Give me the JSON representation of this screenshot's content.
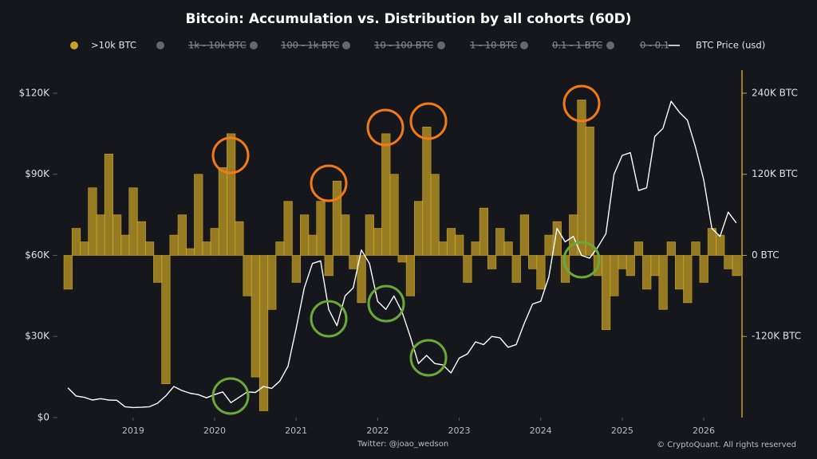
{
  "chart_data": {
    "type": "bar_line_dual",
    "title": "Bitcoin: Accumulation vs. Distribution by all cohorts (60D)",
    "footer_left": "Twitter: @joao_wedson",
    "footer_right": "© CryptoQuant. All rights reserved",
    "x": [
      2018.2,
      2018.3,
      2018.4,
      2018.5,
      2018.6,
      2018.7,
      2018.8,
      2018.9,
      2019.0,
      2019.1,
      2019.2,
      2019.3,
      2019.4,
      2019.5,
      2019.6,
      2019.7,
      2019.8,
      2019.9,
      2020.0,
      2020.1,
      2020.2,
      2020.3,
      2020.4,
      2020.5,
      2020.6,
      2020.7,
      2020.8,
      2020.9,
      2021.0,
      2021.1,
      2021.2,
      2021.3,
      2021.4,
      2021.5,
      2021.6,
      2021.7,
      2021.8,
      2021.9,
      2022.0,
      2022.1,
      2022.2,
      2022.3,
      2022.4,
      2022.5,
      2022.6,
      2022.7,
      2022.8,
      2022.9,
      2023.0,
      2023.1,
      2023.2,
      2023.3,
      2023.4,
      2023.5,
      2023.6,
      2023.7,
      2023.8,
      2023.9,
      2024.0,
      2024.1,
      2024.2,
      2024.3,
      2024.4,
      2024.5,
      2024.6,
      2024.7,
      2024.8,
      2024.9,
      2025.0,
      2025.1,
      2025.2,
      2025.3,
      2025.4,
      2025.5,
      2025.6,
      2025.7,
      2025.8,
      2025.9,
      2026.0,
      2026.1,
      2026.2,
      2026.3,
      2026.4
    ],
    "xlim": [
      2018.15,
      2026.45
    ],
    "xticks": [
      2019,
      2020,
      2021,
      2022,
      2023,
      2024,
      2025,
      2026
    ],
    "ylim": [
      0,
      125000
    ],
    "yticks": [
      {
        "value": 0,
        "label": "$0"
      },
      {
        "value": 30000,
        "label": "$30K"
      },
      {
        "value": 60000,
        "label": "$60K"
      },
      {
        "value": 90000,
        "label": "$90K"
      },
      {
        "value": 120000,
        "label": "$120K"
      }
    ],
    "y2lim": [
      -240000,
      260000
    ],
    "y2ticks": [
      {
        "value": -120000,
        "label": "-120K BTC"
      },
      {
        "value": 0,
        "label": "0 BTC"
      },
      {
        "value": 120000,
        "label": "120K BTC"
      },
      {
        "value": 240000,
        "label": "240K BTC"
      }
    ],
    "grid": false,
    "legend": "top",
    "series": [
      {
        "name": ">10k BTC",
        "color": "#c9a227",
        "axis": "y2",
        "kind": "bar",
        "values": [
          -50000,
          40000,
          20000,
          100000,
          60000,
          150000,
          60000,
          30000,
          100000,
          50000,
          20000,
          -40000,
          -190000,
          30000,
          60000,
          10000,
          120000,
          20000,
          40000,
          130000,
          180000,
          50000,
          -60000,
          -180000,
          -230000,
          -80000,
          20000,
          80000,
          -40000,
          60000,
          30000,
          80000,
          -30000,
          110000,
          60000,
          -20000,
          -70000,
          60000,
          40000,
          180000,
          120000,
          -10000,
          -60000,
          80000,
          190000,
          120000,
          20000,
          40000,
          30000,
          -40000,
          20000,
          70000,
          -20000,
          40000,
          20000,
          -40000,
          60000,
          -20000,
          -50000,
          30000,
          50000,
          -40000,
          60000,
          230000,
          190000,
          -30000,
          -110000,
          -60000,
          -20000,
          -30000,
          20000,
          -50000,
          -30000,
          -80000,
          20000,
          -50000,
          -70000,
          20000,
          -40000,
          40000,
          30000,
          -20000,
          -30000
        ]
      },
      {
        "name": "1k - 10k BTC",
        "color": "#8c8c8c",
        "hidden": true
      },
      {
        "name": "100 - 1k BTC",
        "color": "#8c8c8c",
        "hidden": true
      },
      {
        "name": "10 - 100 BTC",
        "color": "#8c8c8c",
        "hidden": true
      },
      {
        "name": "1 - 10 BTC",
        "color": "#8c8c8c",
        "hidden": true
      },
      {
        "name": "0.1 - 1 BTC",
        "color": "#8c8c8c",
        "hidden": true
      },
      {
        "name": "0 - 0.1",
        "color": "#8c8c8c",
        "hidden": true
      },
      {
        "name": "BTC Price (usd)",
        "color": "#ffffff",
        "axis": "y",
        "kind": "line",
        "values": [
          11000,
          8000,
          7500,
          6500,
          7000,
          6500,
          6400,
          4000,
          3700,
          3800,
          4000,
          5300,
          8000,
          11500,
          10000,
          9000,
          8500,
          7300,
          8500,
          9500,
          5500,
          7500,
          9500,
          9300,
          11500,
          10800,
          13500,
          19000,
          33000,
          48000,
          57000,
          58000,
          40000,
          34000,
          45000,
          48000,
          62000,
          57000,
          43000,
          40000,
          45000,
          39000,
          30000,
          20000,
          23000,
          20000,
          19500,
          16500,
          22000,
          23500,
          28000,
          27000,
          30000,
          29500,
          26000,
          27000,
          35000,
          42000,
          43000,
          52000,
          70000,
          65000,
          67000,
          60000,
          59000,
          63000,
          68000,
          90000,
          97000,
          98000,
          84000,
          85000,
          104000,
          107000,
          117000,
          113000,
          110000,
          100000,
          88000,
          70000,
          67000,
          76000,
          72000
        ]
      }
    ]
  }
}
